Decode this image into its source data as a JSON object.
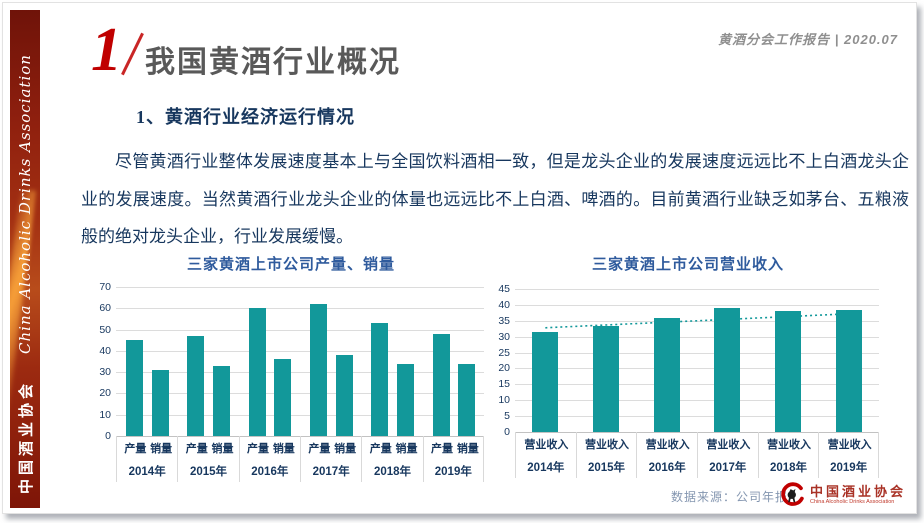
{
  "sidebar": {
    "org_cn": "中国酒业协会",
    "org_en": "China Alcoholic Drinks Association"
  },
  "header": {
    "section_number": "1",
    "title": "我国黄酒行业概况",
    "report_info": "黄酒分会工作报告 | 2020.07"
  },
  "content": {
    "heading": "1、黄酒行业经济运行情况",
    "paragraph": "尽管黄酒行业整体发展速度基本上与全国饮料酒相一致，但是龙头企业的发展速度远远比不上白酒龙头企业的发展速度。当然黄酒行业龙头企业的体量也远远比不上白酒、啤酒的。目前黄酒行业缺乏如茅台、五粮液般的绝对龙头企业，行业发展缓慢。"
  },
  "footer": {
    "data_source": "数据来源：公司年报",
    "logo_cn": "中国酒业协会",
    "logo_en": "China Alcoholic Drinks Association"
  },
  "colors": {
    "bar_teal": "#12989A",
    "accent_red": "#C00000",
    "navy": "#17375E",
    "chart_blue": "#2F5B9D",
    "title_gray": "#595959"
  },
  "chart_data": [
    {
      "type": "bar",
      "title": "三家黄酒上市公司产量、销量",
      "categories": [
        "2014年",
        "2015年",
        "2016年",
        "2017年",
        "2018年",
        "2019年"
      ],
      "series": [
        {
          "name": "产量",
          "values": [
            45,
            47,
            60,
            62,
            53,
            48
          ]
        },
        {
          "name": "销量",
          "values": [
            31,
            33,
            36,
            38,
            34,
            34
          ]
        }
      ],
      "ylim": [
        0,
        70
      ],
      "ytick_step": 10,
      "grid": true,
      "legend": "none"
    },
    {
      "type": "bar",
      "title": "三家黄酒上市公司营业收入",
      "categories": [
        "2014年",
        "2015年",
        "2016年",
        "2017年",
        "2018年",
        "2019年"
      ],
      "series": [
        {
          "name": "营业收入",
          "values": [
            31.5,
            33.5,
            36,
            39,
            38,
            38.5
          ]
        }
      ],
      "trendline": {
        "style": "dotted",
        "y_start": 32.8,
        "y_end": 37.2
      },
      "ylim": [
        0,
        45
      ],
      "ytick_step": 5,
      "grid": true,
      "legend": "none"
    }
  ]
}
